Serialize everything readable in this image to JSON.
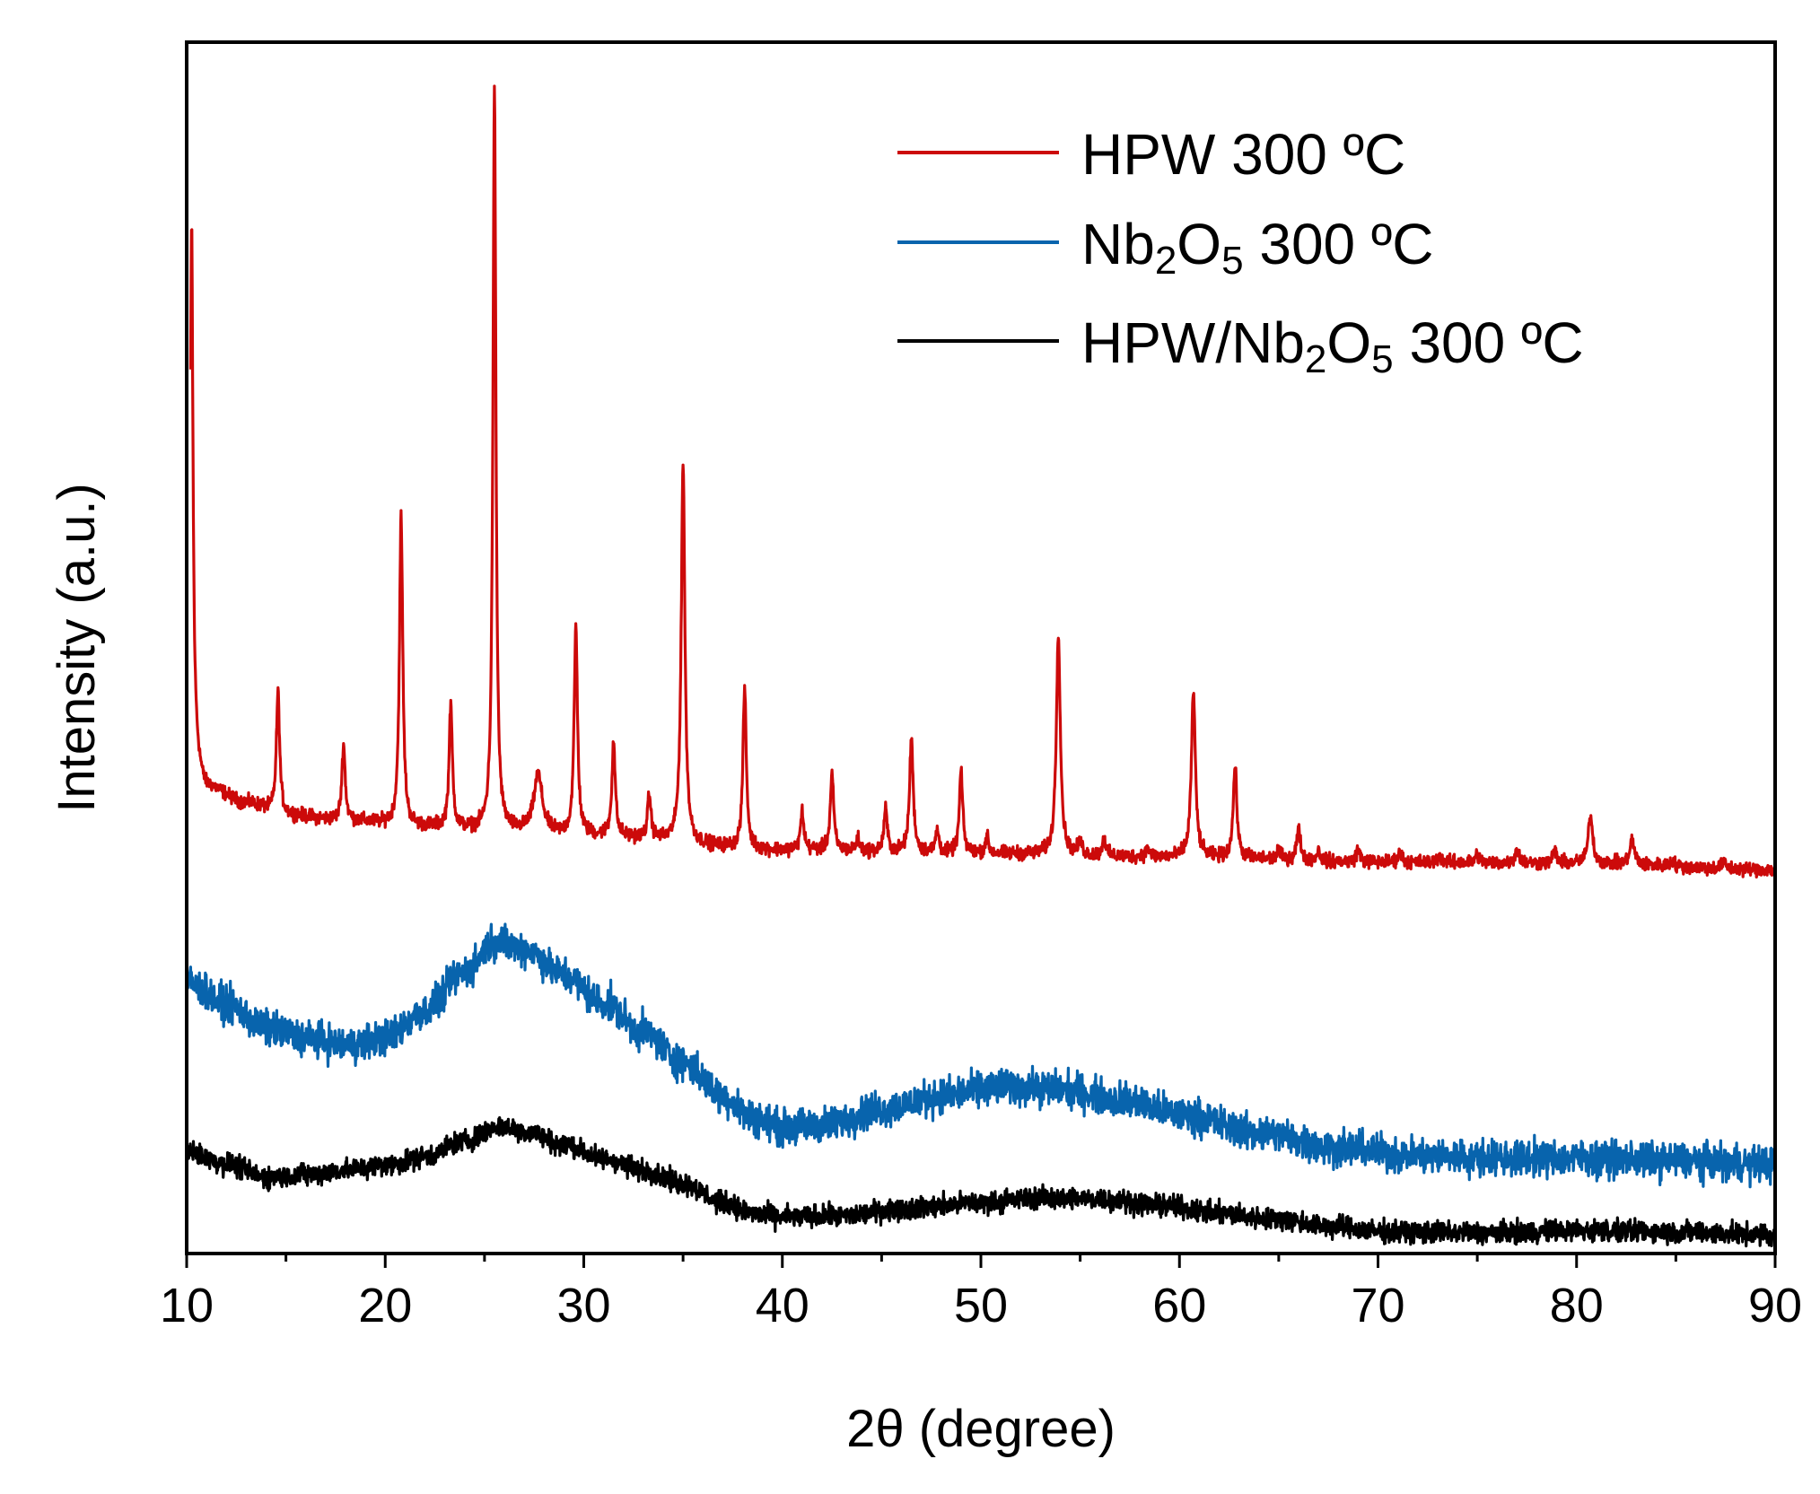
{
  "chart_data": {
    "type": "line",
    "title": "",
    "xlabel": "2θ (degree)",
    "ylabel": "Intensity (a.u.)",
    "xlim": [
      10,
      90
    ],
    "ylim": [
      0,
      1
    ],
    "yticks_shown": false,
    "xticks": [
      10,
      20,
      30,
      40,
      50,
      60,
      70,
      80,
      90
    ],
    "xtick_labels": [
      "10",
      "20",
      "30",
      "40",
      "50",
      "60",
      "70",
      "80",
      "90"
    ],
    "legend_position": "top-right",
    "series": [
      {
        "name": "HPW 300 ºC",
        "legend": {
          "base": "HPW 300 ºC",
          "parts": [
            {
              "t": "HPW 300 ºC",
              "sub": false
            }
          ]
        },
        "color": "#cc0a0a",
        "baseline": [
          [
            10.2,
            0.42
          ],
          [
            11,
            0.385
          ],
          [
            13,
            0.372
          ],
          [
            15,
            0.362
          ],
          [
            18,
            0.357
          ],
          [
            22,
            0.352
          ],
          [
            26,
            0.348
          ],
          [
            30,
            0.345
          ],
          [
            40,
            0.333
          ],
          [
            50,
            0.33
          ],
          [
            60,
            0.327
          ],
          [
            70,
            0.323
          ],
          [
            80,
            0.322
          ],
          [
            90,
            0.317
          ]
        ],
        "noise": 0.0035,
        "peaks": [
          {
            "x": 10.25,
            "h": 0.43,
            "w": 0.08
          },
          {
            "x": 14.6,
            "h": 0.1,
            "w": 0.1
          },
          {
            "x": 17.9,
            "h": 0.063,
            "w": 0.1
          },
          {
            "x": 20.8,
            "h": 0.255,
            "w": 0.1
          },
          {
            "x": 23.3,
            "h": 0.1,
            "w": 0.1
          },
          {
            "x": 25.5,
            "h": 0.612,
            "w": 0.09
          },
          {
            "x": 27.7,
            "h": 0.048,
            "w": 0.25
          },
          {
            "x": 29.6,
            "h": 0.172,
            "w": 0.1
          },
          {
            "x": 31.5,
            "h": 0.078,
            "w": 0.1
          },
          {
            "x": 33.3,
            "h": 0.036,
            "w": 0.1
          },
          {
            "x": 35.0,
            "h": 0.314,
            "w": 0.11
          },
          {
            "x": 38.1,
            "h": 0.133,
            "w": 0.1
          },
          {
            "x": 41.0,
            "h": 0.032,
            "w": 0.1
          },
          {
            "x": 42.5,
            "h": 0.064,
            "w": 0.1
          },
          {
            "x": 43.8,
            "h": 0.01,
            "w": 0.1
          },
          {
            "x": 45.2,
            "h": 0.035,
            "w": 0.1
          },
          {
            "x": 46.5,
            "h": 0.094,
            "w": 0.11
          },
          {
            "x": 47.8,
            "h": 0.019,
            "w": 0.1
          },
          {
            "x": 49.0,
            "h": 0.068,
            "w": 0.1
          },
          {
            "x": 50.3,
            "h": 0.014,
            "w": 0.1
          },
          {
            "x": 53.9,
            "h": 0.184,
            "w": 0.12
          },
          {
            "x": 55.0,
            "h": 0.01,
            "w": 0.12
          },
          {
            "x": 56.2,
            "h": 0.015,
            "w": 0.1
          },
          {
            "x": 58.4,
            "h": 0.008,
            "w": 0.1
          },
          {
            "x": 60.7,
            "h": 0.137,
            "w": 0.12
          },
          {
            "x": 62.8,
            "h": 0.076,
            "w": 0.11
          },
          {
            "x": 65.0,
            "h": 0.007,
            "w": 0.12
          },
          {
            "x": 66.0,
            "h": 0.025,
            "w": 0.12
          },
          {
            "x": 67.0,
            "h": 0.008,
            "w": 0.12
          },
          {
            "x": 69.0,
            "h": 0.01,
            "w": 0.12
          },
          {
            "x": 71.1,
            "h": 0.008,
            "w": 0.12
          },
          {
            "x": 73.1,
            "h": 0.006,
            "w": 0.12
          },
          {
            "x": 75.0,
            "h": 0.007,
            "w": 0.12
          },
          {
            "x": 77.0,
            "h": 0.012,
            "w": 0.12
          },
          {
            "x": 78.9,
            "h": 0.01,
            "w": 0.12
          },
          {
            "x": 80.7,
            "h": 0.04,
            "w": 0.13
          },
          {
            "x": 82.8,
            "h": 0.02,
            "w": 0.14
          },
          {
            "x": 84.8,
            "h": 0.005,
            "w": 0.12
          },
          {
            "x": 87.4,
            "h": 0.005,
            "w": 0.12
          }
        ]
      },
      {
        "name": "Nb2O5 300 ºC",
        "legend": {
          "base": "Nb",
          "parts": [
            {
              "t": "Nb",
              "sub": false
            },
            {
              "t": "2",
              "sub": true
            },
            {
              "t": "O",
              "sub": false
            },
            {
              "t": "5",
              "sub": true
            },
            {
              "t": " 300 ºC",
              "sub": false
            }
          ]
        },
        "color": "#0864ad",
        "baseline": [
          [
            10,
            0.224
          ],
          [
            12,
            0.206
          ],
          [
            14,
            0.186
          ],
          [
            16,
            0.178
          ],
          [
            18,
            0.172
          ],
          [
            20,
            0.178
          ],
          [
            22,
            0.2
          ],
          [
            24,
            0.232
          ],
          [
            25.5,
            0.258
          ],
          [
            27,
            0.252
          ],
          [
            29,
            0.23
          ],
          [
            31,
            0.207
          ],
          [
            33,
            0.183
          ],
          [
            35,
            0.158
          ],
          [
            37,
            0.13
          ],
          [
            38.5,
            0.112
          ],
          [
            40,
            0.104
          ],
          [
            42,
            0.106
          ],
          [
            45,
            0.119
          ],
          [
            48,
            0.13
          ],
          [
            51,
            0.138
          ],
          [
            54,
            0.136
          ],
          [
            57,
            0.127
          ],
          [
            60,
            0.115
          ],
          [
            64,
            0.1
          ],
          [
            68,
            0.087
          ],
          [
            72,
            0.081
          ],
          [
            76,
            0.079
          ],
          [
            80,
            0.079
          ],
          [
            84,
            0.077
          ],
          [
            90,
            0.074
          ]
        ],
        "noise": 0.009
      },
      {
        "name": "HPW/Nb2O5 300 ºC",
        "legend": {
          "base": "HPW/Nb",
          "parts": [
            {
              "t": "HPW/Nb",
              "sub": false
            },
            {
              "t": "2",
              "sub": true
            },
            {
              "t": "O",
              "sub": false
            },
            {
              "t": "5",
              "sub": true
            },
            {
              "t": " 300 ºC",
              "sub": false
            }
          ]
        },
        "color": "#000000",
        "baseline": [
          [
            10,
            0.084
          ],
          [
            12,
            0.074
          ],
          [
            14,
            0.063
          ],
          [
            16,
            0.065
          ],
          [
            18,
            0.069
          ],
          [
            20,
            0.073
          ],
          [
            22,
            0.08
          ],
          [
            24,
            0.093
          ],
          [
            25.8,
            0.105
          ],
          [
            27,
            0.101
          ],
          [
            29,
            0.09
          ],
          [
            31,
            0.078
          ],
          [
            33,
            0.069
          ],
          [
            35,
            0.058
          ],
          [
            37,
            0.042
          ],
          [
            38.5,
            0.033
          ],
          [
            40,
            0.03
          ],
          [
            43,
            0.031
          ],
          [
            46,
            0.037
          ],
          [
            50,
            0.042
          ],
          [
            53,
            0.046
          ],
          [
            56,
            0.045
          ],
          [
            59,
            0.04
          ],
          [
            62,
            0.033
          ],
          [
            65,
            0.028
          ],
          [
            68,
            0.022
          ],
          [
            70,
            0.018
          ],
          [
            75,
            0.017
          ],
          [
            80,
            0.019
          ],
          [
            85,
            0.018
          ],
          [
            90,
            0.015
          ]
        ],
        "noise": 0.0055
      }
    ]
  }
}
